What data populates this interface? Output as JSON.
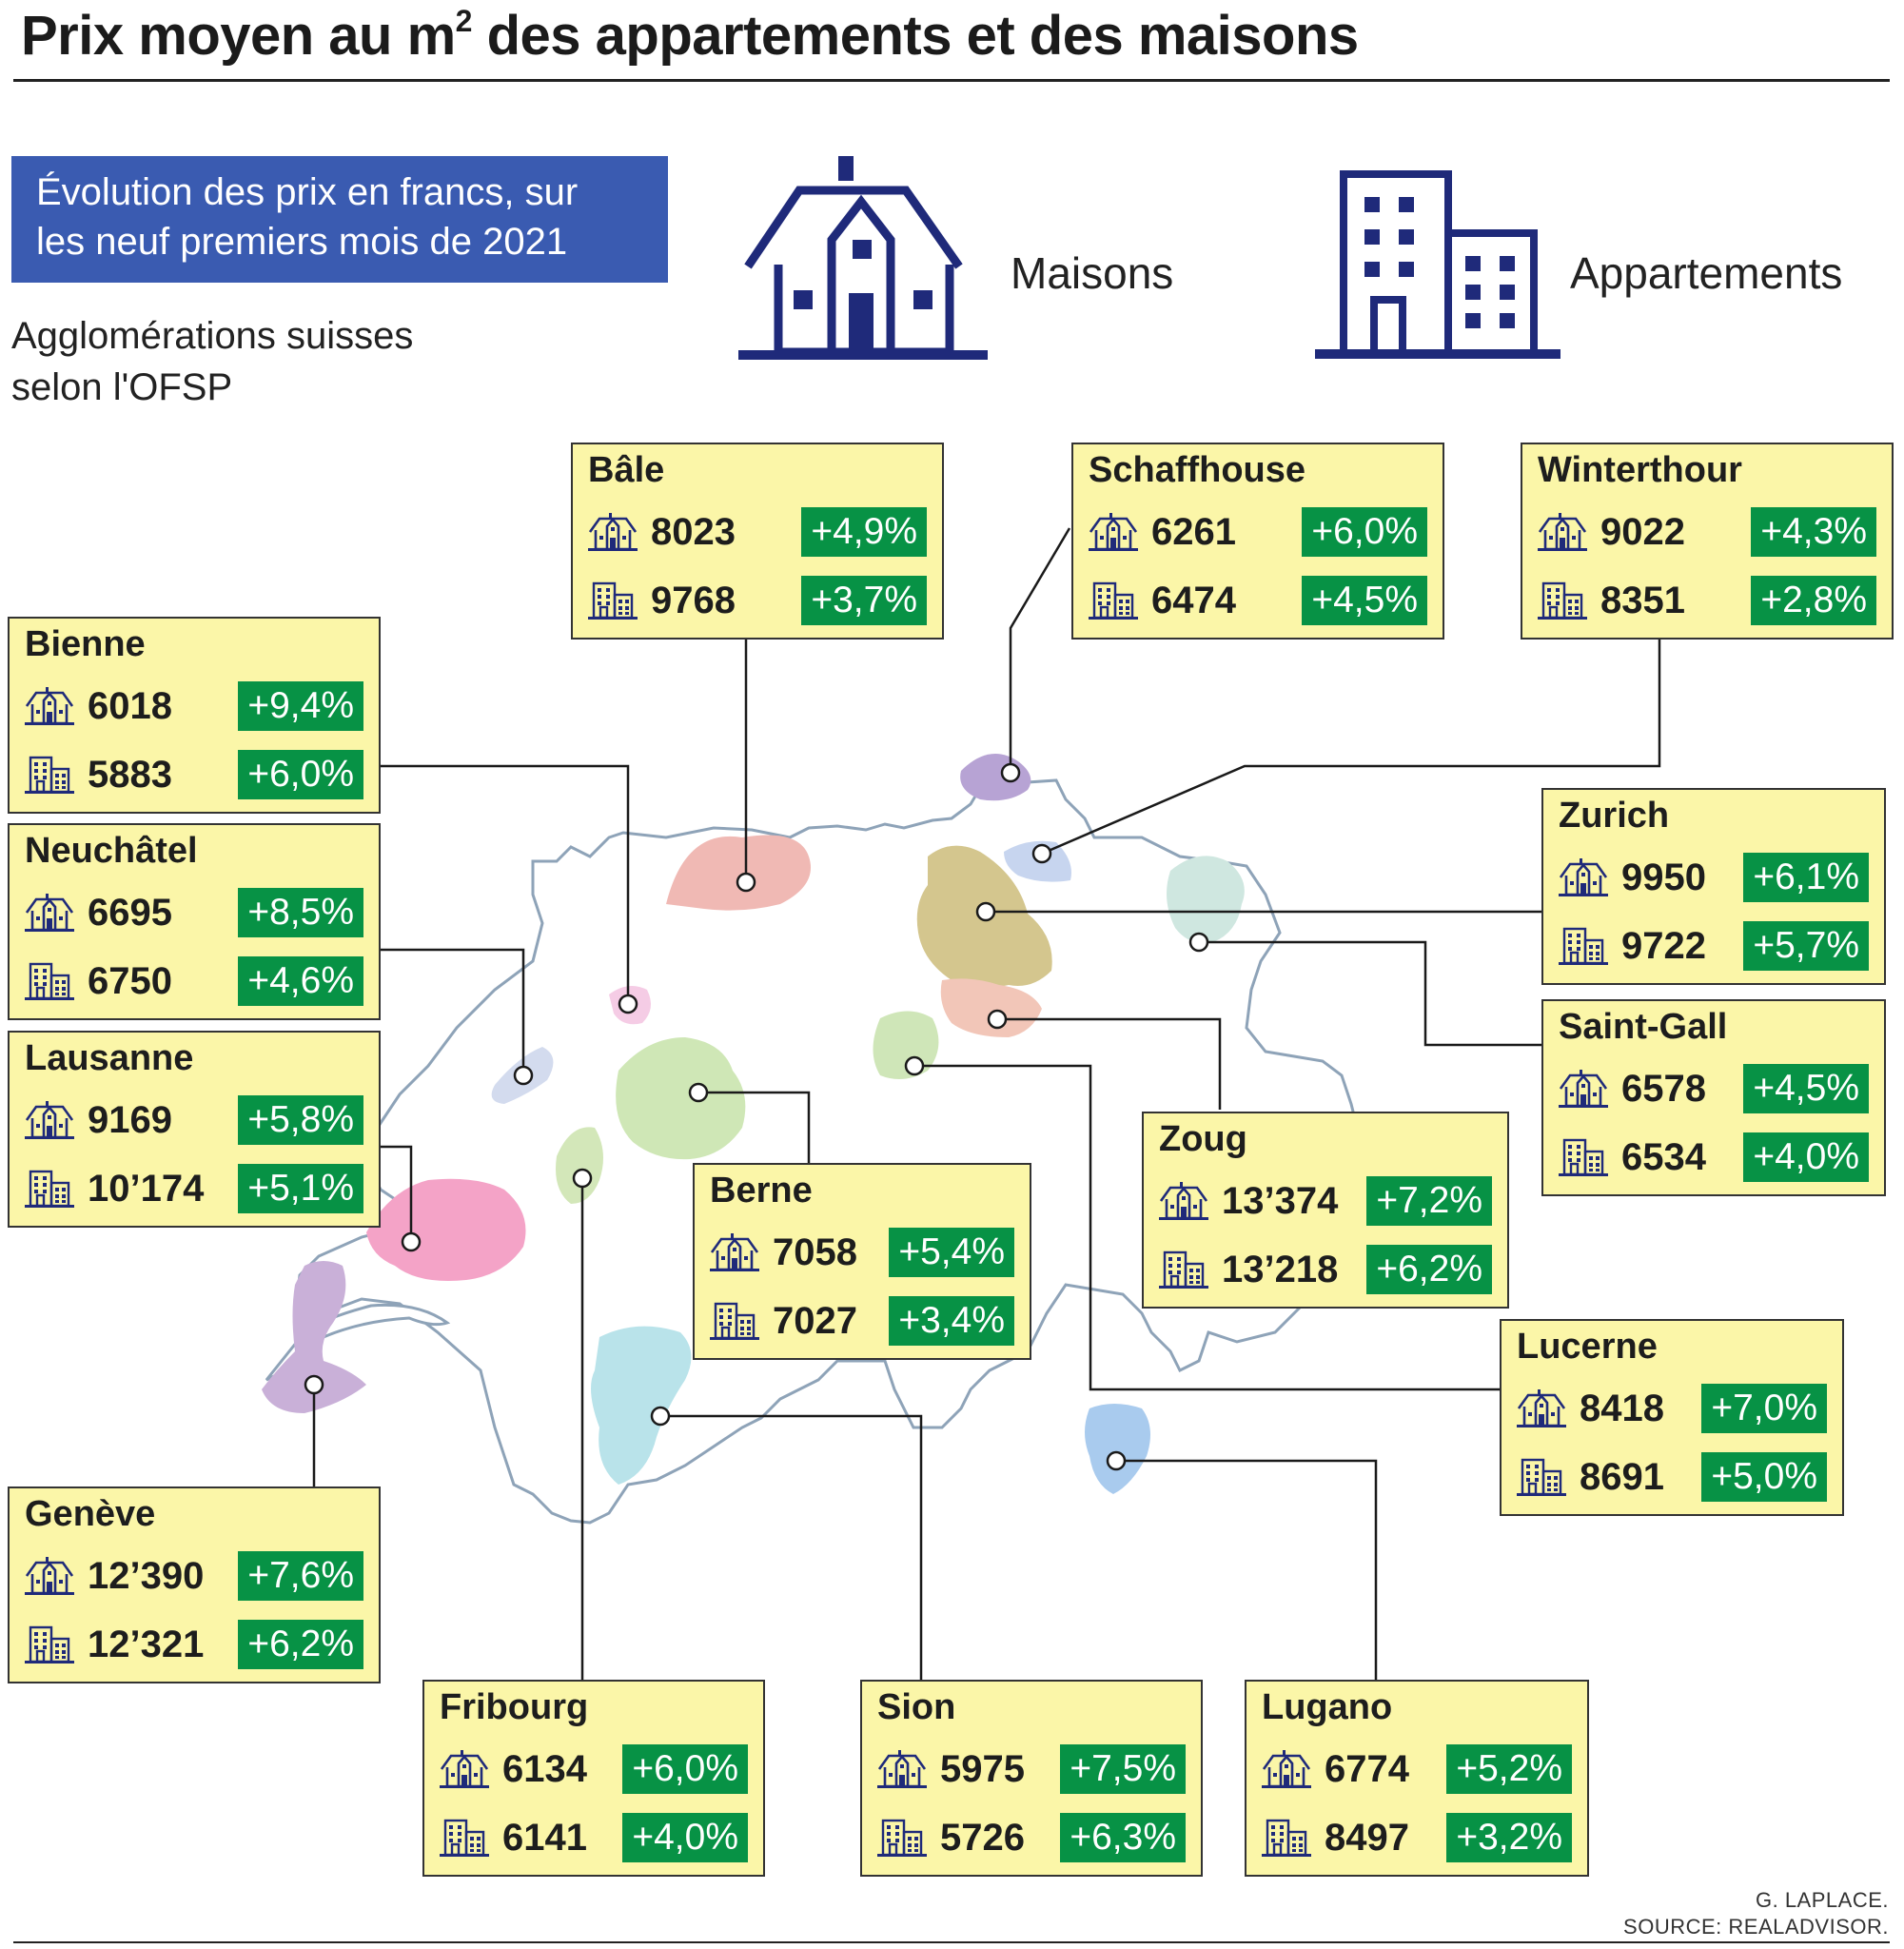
{
  "title": "Prix moyen au m",
  "title_sup": "2",
  "title_rest": " des appartements et des maisons",
  "subtitle_line1": "Évolution des prix en francs, sur",
  "subtitle_line2": "les neuf premiers mois de 2021",
  "note_line1": "Agglomérations suisses",
  "note_line2": "selon l'OFSP",
  "legend": {
    "houses": "Maisons",
    "apartments": "Appartements"
  },
  "colors": {
    "navy": "#1f2a7a",
    "card_bg": "#fbf6a8",
    "pct_bg": "#079245",
    "header_bg": "#3a5bb1"
  },
  "cities": [
    {
      "name": "Bâle",
      "house_price": "8023",
      "house_change": "+4,9%",
      "apt_price": "9768",
      "apt_change": "+3,7%"
    },
    {
      "name": "Schaffhouse",
      "house_price": "6261",
      "house_change": "+6,0%",
      "apt_price": "6474",
      "apt_change": "+4,5%"
    },
    {
      "name": "Winterthour",
      "house_price": "9022",
      "house_change": "+4,3%",
      "apt_price": "8351",
      "apt_change": "+2,8%"
    },
    {
      "name": "Bienne",
      "house_price": "6018",
      "house_change": "+9,4%",
      "apt_price": "5883",
      "apt_change": "+6,0%"
    },
    {
      "name": "Neuchâtel",
      "house_price": "6695",
      "house_change": "+8,5%",
      "apt_price": "6750",
      "apt_change": "+4,6%"
    },
    {
      "name": "Lausanne",
      "house_price": "9169",
      "house_change": "+5,8%",
      "apt_price": "10’174",
      "apt_change": "+5,1%"
    },
    {
      "name": "Zurich",
      "house_price": "9950",
      "house_change": "+6,1%",
      "apt_price": "9722",
      "apt_change": "+5,7%"
    },
    {
      "name": "Saint-Gall",
      "house_price": "6578",
      "house_change": "+4,5%",
      "apt_price": "6534",
      "apt_change": "+4,0%"
    },
    {
      "name": "Berne",
      "house_price": "7058",
      "house_change": "+5,4%",
      "apt_price": "7027",
      "apt_change": "+3,4%"
    },
    {
      "name": "Zoug",
      "house_price": "13’374",
      "house_change": "+7,2%",
      "apt_price": "13’218",
      "apt_change": "+6,2%"
    },
    {
      "name": "Lucerne",
      "house_price": "8418",
      "house_change": "+7,0%",
      "apt_price": "8691",
      "apt_change": "+5,0%"
    },
    {
      "name": "Genève",
      "house_price": "12’390",
      "house_change": "+7,6%",
      "apt_price": "12’321",
      "apt_change": "+6,2%"
    },
    {
      "name": "Fribourg",
      "house_price": "6134",
      "house_change": "+6,0%",
      "apt_price": "6141",
      "apt_change": "+4,0%"
    },
    {
      "name": "Sion",
      "house_price": "5975",
      "house_change": "+7,5%",
      "apt_price": "5726",
      "apt_change": "+6,3%"
    },
    {
      "name": "Lugano",
      "house_price": "6774",
      "house_change": "+5,2%",
      "apt_price": "8497",
      "apt_change": "+3,2%"
    }
  ],
  "credit_line1": "G. LAPLACE.",
  "credit_line2": "SOURCE: REALADVISOR."
}
